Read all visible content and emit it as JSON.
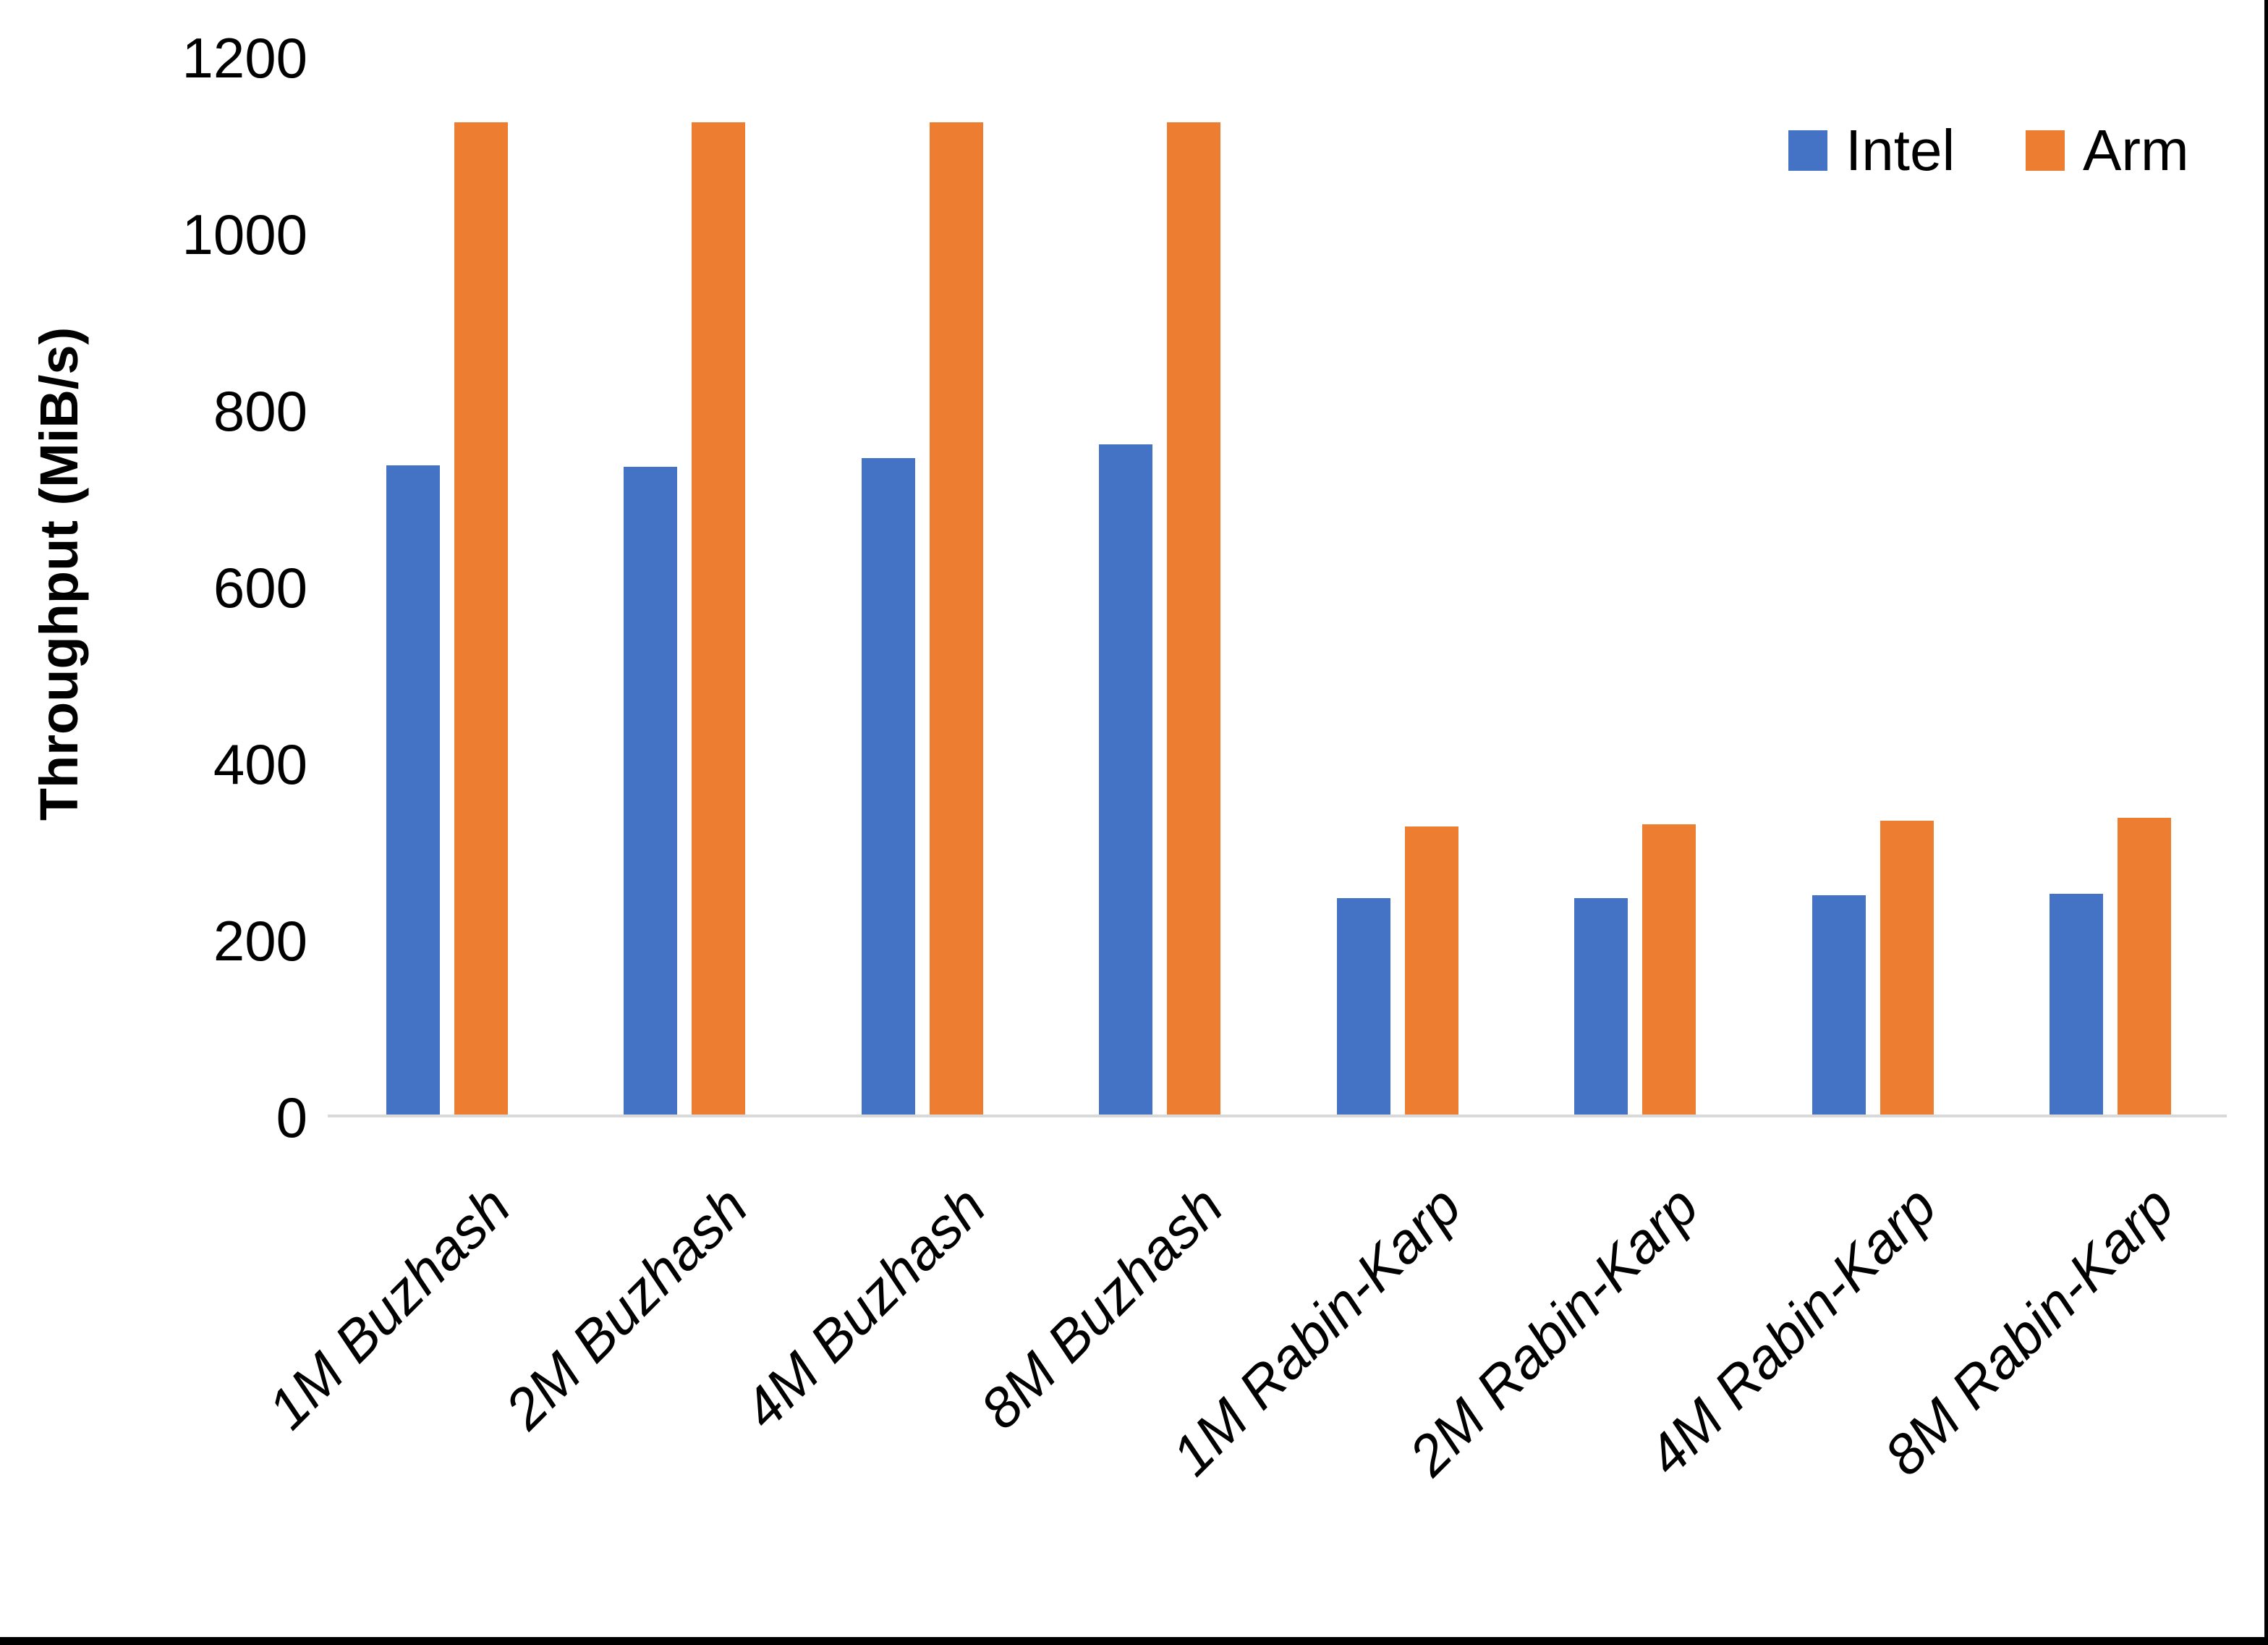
{
  "chart_data": {
    "type": "bar",
    "title": "",
    "ylabel": "Throughput (MiB/s)",
    "xlabel": "",
    "ylim": [
      0,
      1200
    ],
    "yticks": [
      0,
      200,
      400,
      600,
      800,
      1000,
      1200
    ],
    "grid": false,
    "legend_position": "top-right",
    "categories": [
      "1M Buzhash",
      "2M Buzhash",
      "4M Buzhash",
      "8M Buzhash",
      "1M Rabin-Karp",
      "2M Rabin-Karp",
      "4M Rabin-Karp",
      "8M Rabin-Karp"
    ],
    "series": [
      {
        "name": "Intel",
        "color": "#4472C4",
        "values": [
          738,
          736,
          746,
          762,
          246,
          246,
          249,
          251
        ]
      },
      {
        "name": "Arm",
        "color": "#ED7D31",
        "values": [
          1128,
          1128,
          1128,
          1128,
          327,
          330,
          334,
          337
        ]
      }
    ],
    "axis_line_color": "#D9D9D9",
    "text_color": "#000000"
  },
  "frame": {
    "border_color": "#000000"
  }
}
